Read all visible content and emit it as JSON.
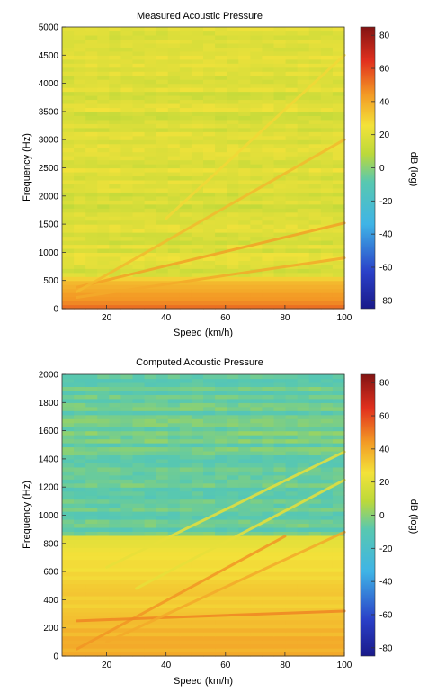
{
  "chart_data": [
    {
      "type": "heatmap",
      "title": "Measured Acoustic Pressure",
      "xlabel": "Speed (km/h)",
      "ylabel": "Frequency (Hz)",
      "xlim": [
        5,
        100
      ],
      "ylim": [
        0,
        5000
      ],
      "xticks": [
        20,
        40,
        60,
        80,
        100
      ],
      "yticks": [
        0,
        500,
        1000,
        1500,
        2000,
        2500,
        3000,
        3500,
        4000,
        4500,
        5000
      ],
      "background_db": 18,
      "low_freq_band": {
        "hz_max": 600,
        "db_at_0hz": 55,
        "db_at_600hz": 28
      },
      "order_lines": [
        {
          "from": [
            10,
            380
          ],
          "to": [
            100,
            1520
          ],
          "db": 42
        },
        {
          "from": [
            10,
            300
          ],
          "to": [
            100,
            3000
          ],
          "db": 36
        },
        {
          "from": [
            40,
            1600
          ],
          "to": [
            100,
            4500
          ],
          "db": 28
        },
        {
          "from": [
            10,
            200
          ],
          "to": [
            100,
            900
          ],
          "db": 40
        }
      ],
      "colorbar": {
        "label": "dB (log)",
        "range": [
          -85,
          85
        ],
        "ticks": [
          -80,
          -60,
          -40,
          -20,
          0,
          20,
          40,
          60,
          80
        ]
      }
    },
    {
      "type": "heatmap",
      "title": "Computed Acoustic Pressure",
      "xlabel": "Speed (km/h)",
      "ylabel": "Frequency (Hz)",
      "xlim": [
        5,
        100
      ],
      "ylim": [
        0,
        2000
      ],
      "xticks": [
        20,
        40,
        60,
        80,
        100
      ],
      "yticks": [
        0,
        200,
        400,
        600,
        800,
        1000,
        1200,
        1400,
        1600,
        1800,
        2000
      ],
      "background_db": -5,
      "low_freq_band": {
        "hz_max": 850,
        "db_at_0hz": 40,
        "db_at_600hz": 22
      },
      "order_lines": [
        {
          "from": [
            10,
            50
          ],
          "to": [
            80,
            850
          ],
          "db": 45
        },
        {
          "from": [
            20,
            630
          ],
          "to": [
            100,
            1450
          ],
          "db": 22
        },
        {
          "from": [
            30,
            480
          ],
          "to": [
            100,
            1250
          ],
          "db": 22
        },
        {
          "from": [
            10,
            250
          ],
          "to": [
            100,
            320
          ],
          "db": 48
        },
        {
          "from": [
            20,
            100
          ],
          "to": [
            100,
            880
          ],
          "db": 40
        }
      ],
      "colorbar": {
        "label": "dB (log)",
        "range": [
          -85,
          85
        ],
        "ticks": [
          -80,
          -60,
          -40,
          -20,
          0,
          20,
          40,
          60,
          80
        ]
      }
    }
  ]
}
